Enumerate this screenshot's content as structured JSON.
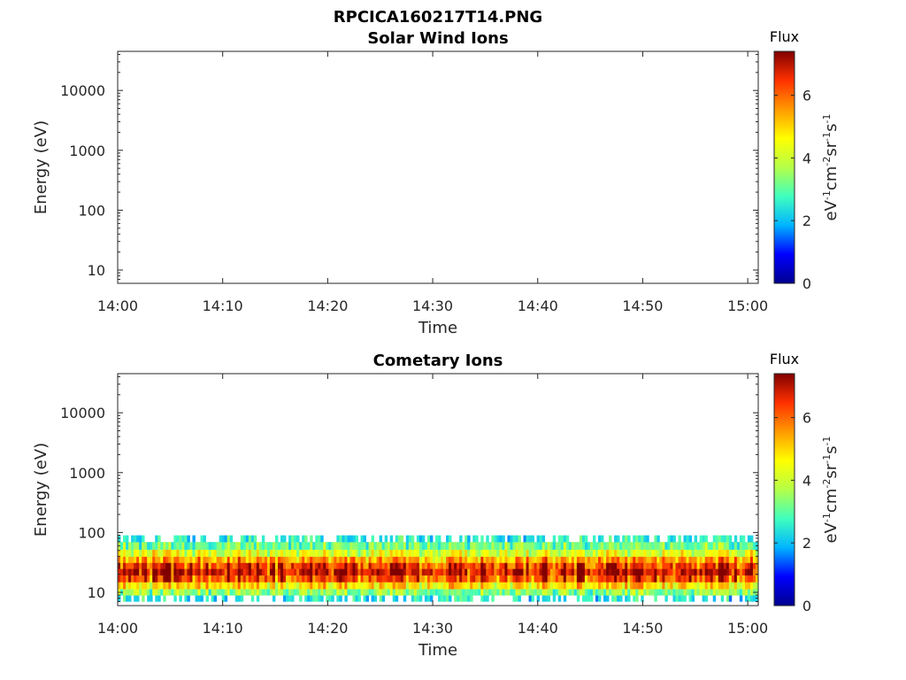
{
  "figure_title": "RPCICA160217T14.PNG",
  "colors": {
    "axis": "#262626",
    "colormap": [
      "#00008f",
      "#0000ff",
      "#00b4ff",
      "#3fffbf",
      "#b4ff48",
      "#ffff00",
      "#ff9a00",
      "#ff3000",
      "#800000"
    ]
  },
  "chart_data": [
    {
      "type": "heatmap",
      "title": "Solar Wind Ions",
      "xlabel": "Time",
      "ylabel": "Energy (eV)",
      "x_ticks": [
        "14:00",
        "14:10",
        "14:20",
        "14:30",
        "14:40",
        "14:50",
        "15:00"
      ],
      "x_range_minutes": [
        0,
        61
      ],
      "y_scale": "log",
      "y_ticks": [
        "10",
        "100",
        "1000",
        "10000"
      ],
      "y_range": [
        6,
        45000
      ],
      "colorbar": {
        "title": "Flux",
        "label": "eV-1cm-2sr-1s-1",
        "ticks": [
          "0",
          "2",
          "4",
          "6"
        ],
        "range": [
          0,
          7.4
        ]
      },
      "data": []
    },
    {
      "type": "heatmap",
      "title": "Cometary Ions",
      "xlabel": "Time",
      "ylabel": "Energy (eV)",
      "x_ticks": [
        "14:00",
        "14:10",
        "14:20",
        "14:30",
        "14:40",
        "14:50",
        "15:00"
      ],
      "x_range_minutes": [
        0,
        61
      ],
      "y_scale": "log",
      "y_ticks": [
        "10",
        "100",
        "1000",
        "10000"
      ],
      "y_range": [
        6,
        45000
      ],
      "colorbar": {
        "title": "Flux",
        "label": "eV-1cm-2sr-1s-1",
        "ticks": [
          "0",
          "2",
          "4",
          "6"
        ],
        "range": [
          0,
          7.4
        ]
      },
      "data": [
        {
          "energy_eV": 80,
          "flux": 2.5
        },
        {
          "energy_eV": 60,
          "flux": 3.2
        },
        {
          "energy_eV": 45,
          "flux": 4.3
        },
        {
          "energy_eV": 35,
          "flux": 5.4
        },
        {
          "energy_eV": 28,
          "flux": 6.4
        },
        {
          "energy_eV": 22,
          "flux": 6.9
        },
        {
          "energy_eV": 17,
          "flux": 6.2
        },
        {
          "energy_eV": 13,
          "flux": 4.8
        },
        {
          "energy_eV": 10,
          "flux": 3.4
        },
        {
          "energy_eV": 8,
          "flux": 2.4
        }
      ]
    }
  ]
}
